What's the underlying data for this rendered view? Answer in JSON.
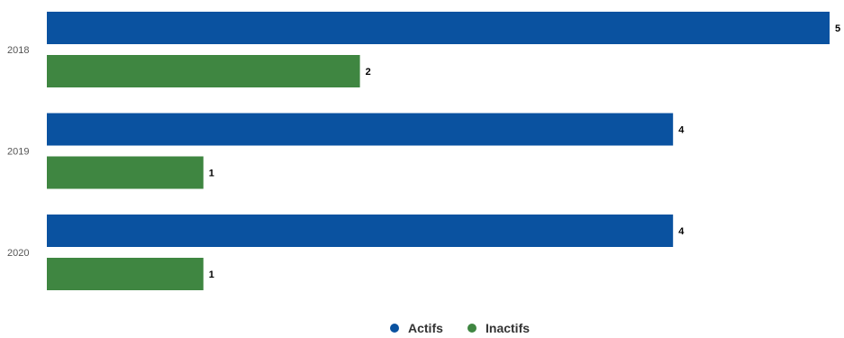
{
  "chart_data": {
    "type": "bar",
    "orientation": "horizontal",
    "categories": [
      "2018",
      "2019",
      "2020"
    ],
    "series": [
      {
        "name": "Actifs",
        "values": [
          5,
          4,
          4
        ],
        "color": "#0a52a0"
      },
      {
        "name": "Inactifs",
        "values": [
          2,
          1,
          1
        ],
        "color": "#3f8641"
      }
    ],
    "xlim": [
      0,
      5
    ],
    "grid": false,
    "data_labels": true,
    "legend_position": "bottom"
  }
}
